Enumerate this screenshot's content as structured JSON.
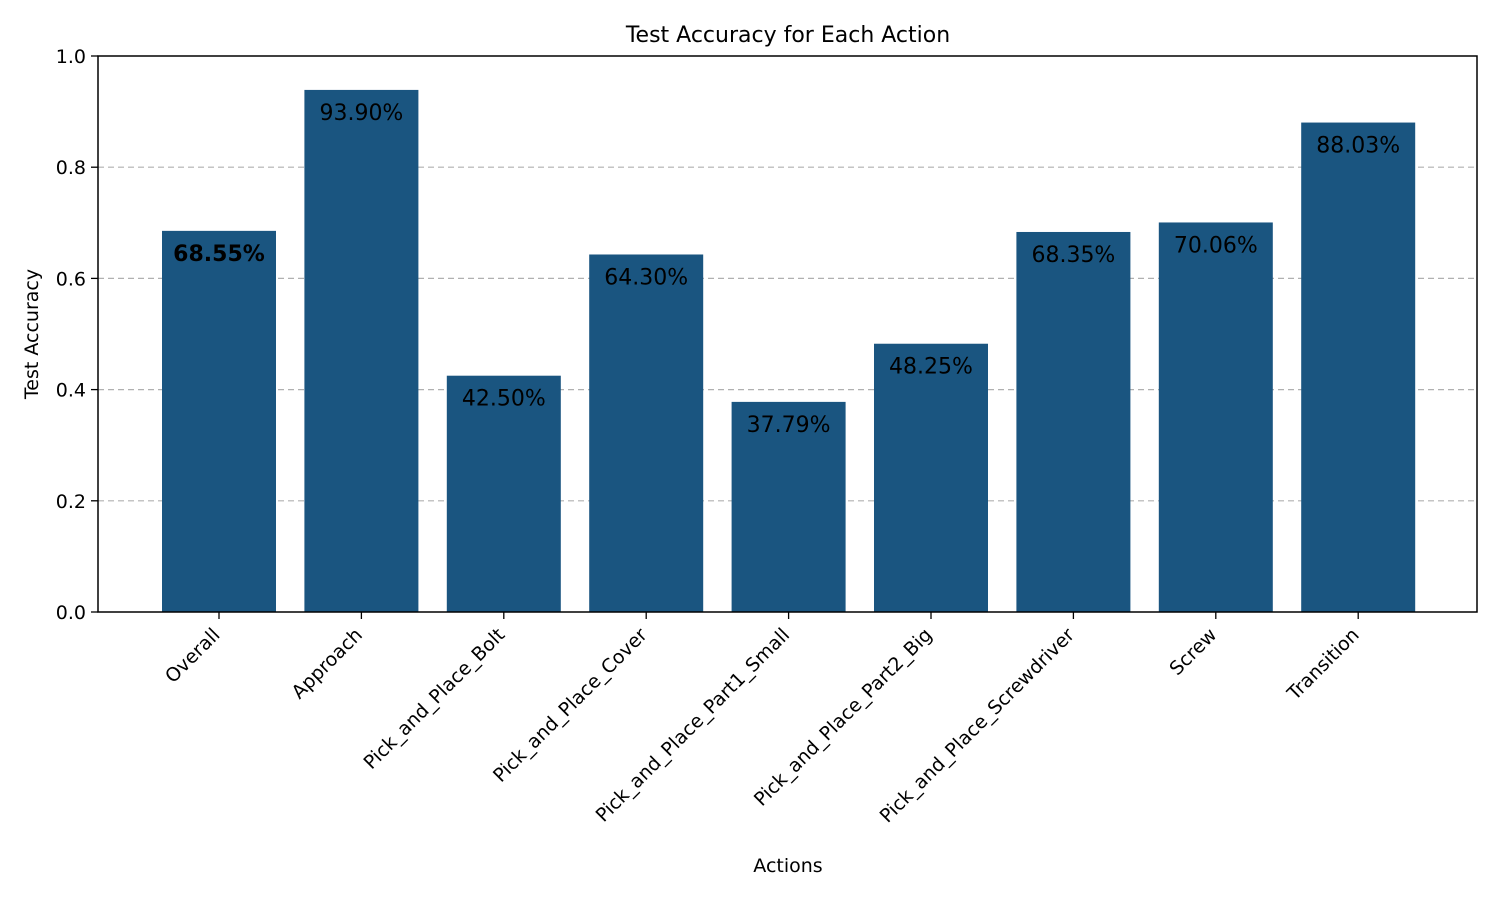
{
  "chart_data": {
    "type": "bar",
    "title": "Test Accuracy for Each Action",
    "xlabel": "Actions",
    "ylabel": "Test Accuracy",
    "ylim": [
      0,
      1.0
    ],
    "yticks": [
      0.0,
      0.2,
      0.4,
      0.6,
      0.8,
      1.0
    ],
    "ytick_labels": [
      "0.0",
      "0.2",
      "0.4",
      "0.6",
      "0.8",
      "1.0"
    ],
    "grid": "y-dashed",
    "bar_color": "#1a5580",
    "categories": [
      "Overall",
      "Approach",
      "Pick_and_Place_Bolt",
      "Pick_and_Place_Cover",
      "Pick_and_Place_Part1_Small",
      "Pick_and_Place_Part2_Big",
      "Pick_and_Place_Screwdriver",
      "Screw",
      "Transition"
    ],
    "values": [
      0.6855,
      0.939,
      0.425,
      0.643,
      0.3779,
      0.4825,
      0.6835,
      0.7006,
      0.8803
    ],
    "data_labels": [
      "68.55%",
      "93.90%",
      "42.50%",
      "64.30%",
      "37.79%",
      "48.25%",
      "68.35%",
      "70.06%",
      "88.03%"
    ],
    "bold_labels": [
      true,
      false,
      false,
      false,
      false,
      false,
      false,
      false,
      false
    ]
  }
}
